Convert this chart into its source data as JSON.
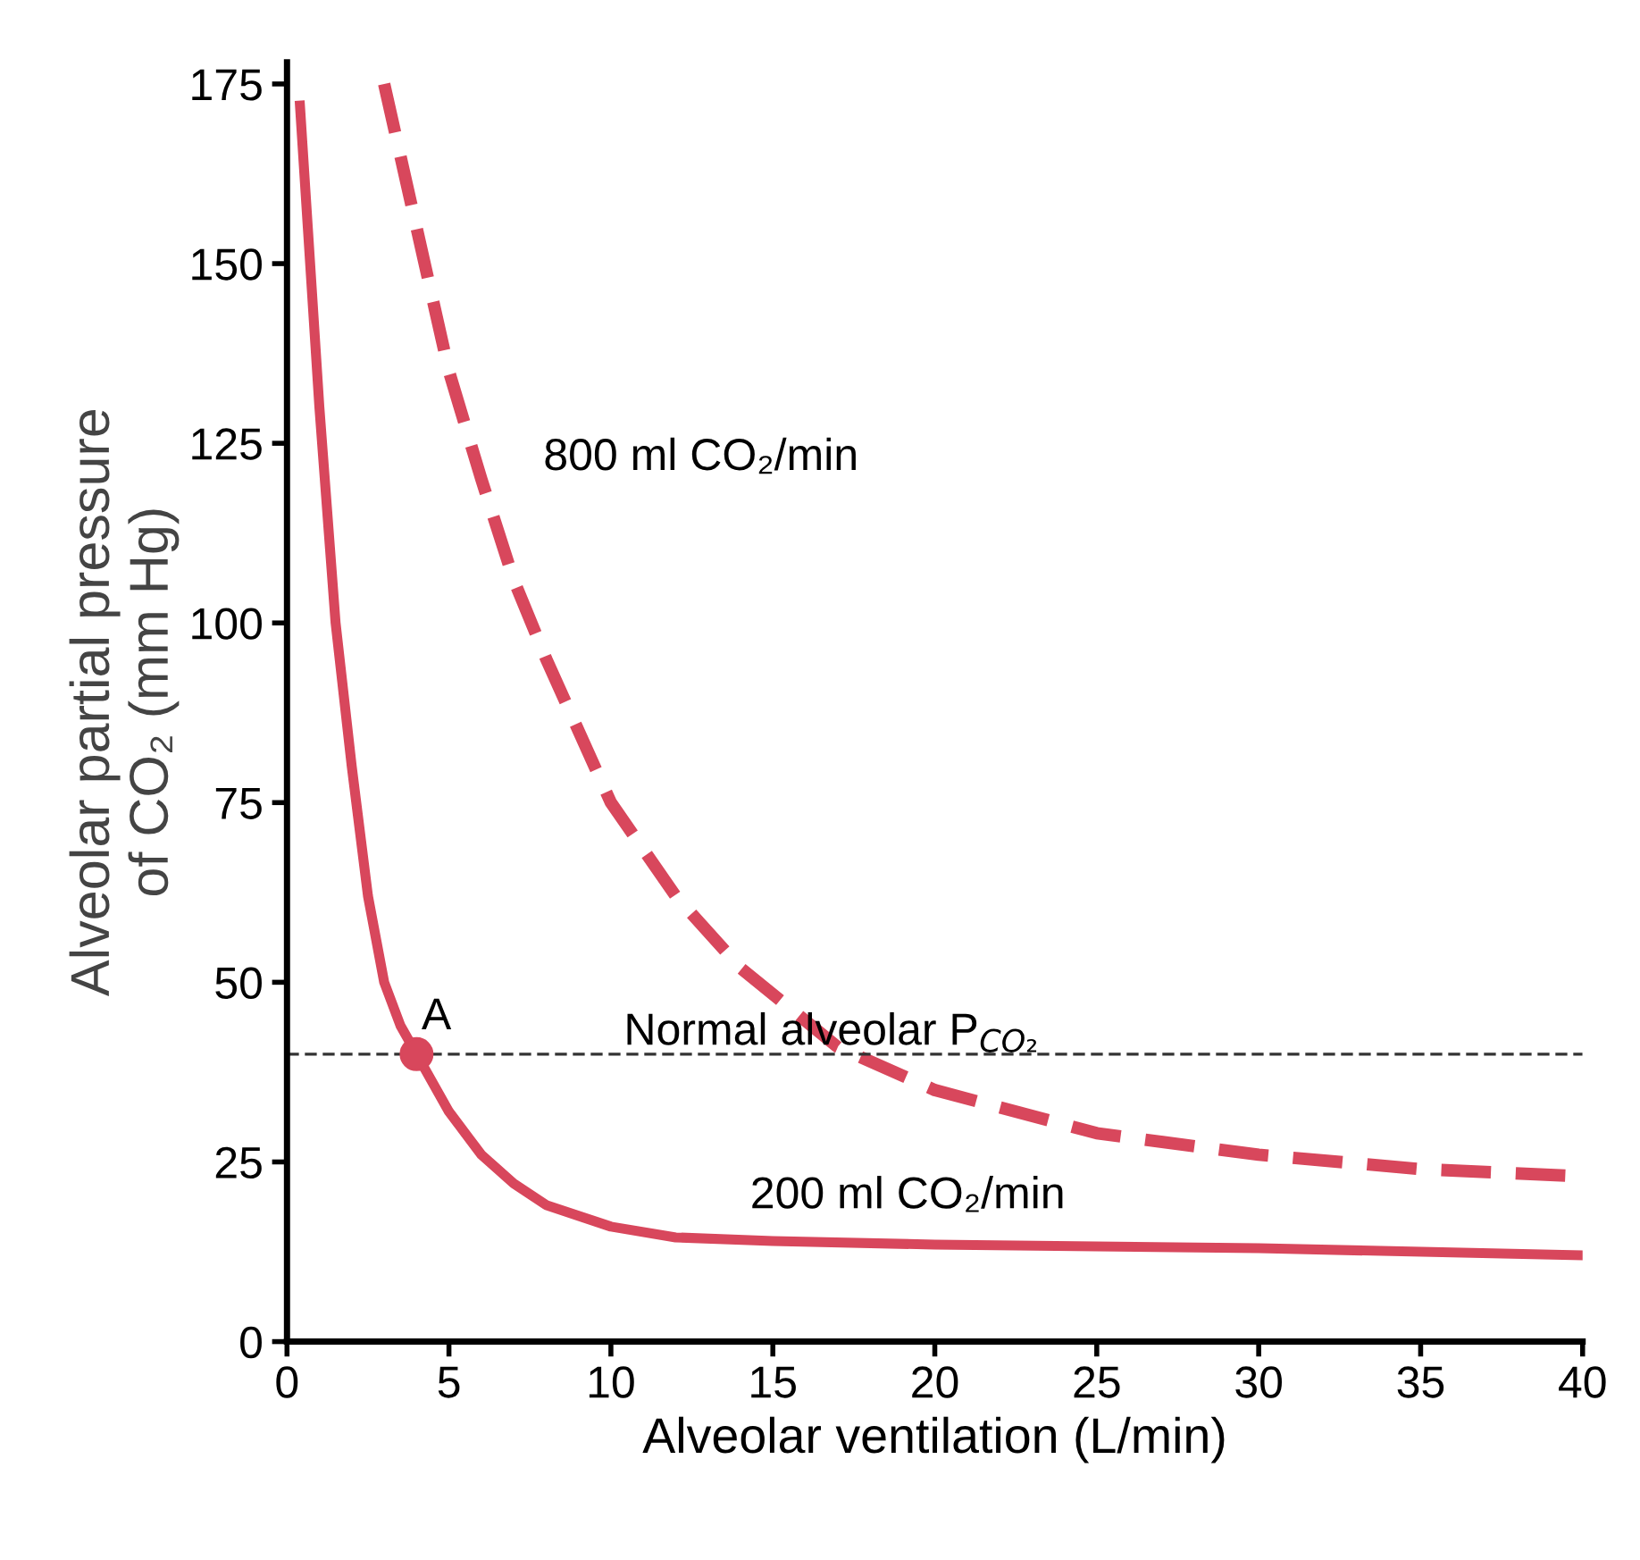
{
  "chart_data": {
    "type": "line",
    "xlabel": "Alveolar ventilation (L/min)",
    "ylabel": "Alveolar partial pressure\nof CO₂ (mm Hg)",
    "xlim": [
      0,
      40
    ],
    "ylim": [
      0,
      178
    ],
    "xticks": [
      0,
      5,
      10,
      15,
      20,
      25,
      30,
      35,
      40
    ],
    "yticks": [
      0,
      25,
      50,
      75,
      100,
      125,
      150,
      175
    ],
    "grid": false,
    "marker": "none",
    "series": [
      {
        "name": "200 ml CO₂/min",
        "color": "#d8475c",
        "line_style": "solid",
        "x": [
          0.4,
          1,
          1.5,
          2,
          2.5,
          3,
          3.5,
          4,
          5,
          6,
          7,
          8,
          10,
          12,
          15,
          20,
          30,
          40
        ],
        "values": [
          172,
          130,
          100,
          80,
          62,
          50,
          44,
          40,
          32,
          26,
          22,
          19,
          16,
          14.5,
          14,
          13.5,
          13,
          12
        ]
      },
      {
        "name": "800 ml CO₂/min",
        "color": "#d8475c",
        "line_style": "dashed",
        "x": [
          3,
          4,
          5,
          6,
          7,
          8,
          10,
          12,
          14,
          17,
          20,
          25,
          30,
          35,
          40
        ],
        "values": [
          175,
          155,
          135,
          120,
          106,
          95,
          75,
          62,
          52,
          41,
          35,
          29,
          26,
          24,
          23
        ]
      },
      {
        "type": "scatter",
        "color": "#d8475c",
        "marker": "circle",
        "x": [
          4
        ],
        "values": [
          40
        ]
      }
    ],
    "ref_lines": [
      {
        "axis": "y",
        "value": 40,
        "label": "Normal alveolar P$_{CO₂}$",
        "color": "#333333",
        "line_style": "dashed"
      }
    ],
    "annotations": [
      {
        "text": "A",
        "x": 4,
        "y": 40
      }
    ]
  }
}
